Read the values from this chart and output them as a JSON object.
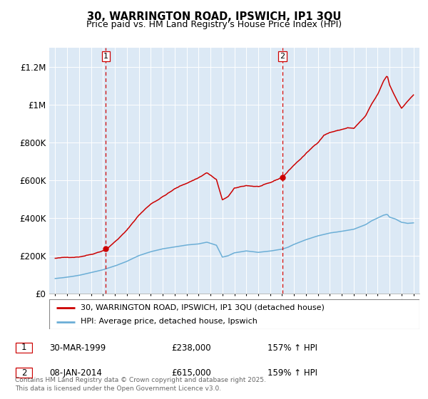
{
  "title1": "30, WARRINGTON ROAD, IPSWICH, IP1 3QU",
  "title2": "Price paid vs. HM Land Registry's House Price Index (HPI)",
  "ylim": [
    0,
    1300000
  ],
  "xlim_start": 1994.5,
  "xlim_end": 2025.5,
  "background_color": "#ffffff",
  "plot_bg_color": "#dce9f5",
  "grid_color": "#ffffff",
  "red_line_color": "#cc0000",
  "blue_line_color": "#6baed6",
  "sale1_x": 1999.24,
  "sale1_y": 238000,
  "sale2_x": 2014.03,
  "sale2_y": 615000,
  "vline_color": "#cc0000",
  "legend_label1": "30, WARRINGTON ROAD, IPSWICH, IP1 3QU (detached house)",
  "legend_label2": "HPI: Average price, detached house, Ipswich",
  "note1_date": "30-MAR-1999",
  "note1_price": "£238,000",
  "note1_hpi": "157% ↑ HPI",
  "note2_date": "08-JAN-2014",
  "note2_price": "£615,000",
  "note2_hpi": "159% ↑ HPI",
  "footer": "Contains HM Land Registry data © Crown copyright and database right 2025.\nThis data is licensed under the Open Government Licence v3.0.",
  "yticks": [
    0,
    200000,
    400000,
    600000,
    800000,
    1000000,
    1200000
  ],
  "ytick_labels": [
    "£0",
    "£200K",
    "£400K",
    "£600K",
    "£800K",
    "£1M",
    "£1.2M"
  ],
  "xticks": [
    1995,
    1996,
    1997,
    1998,
    1999,
    2000,
    2001,
    2002,
    2003,
    2004,
    2005,
    2006,
    2007,
    2008,
    2009,
    2010,
    2011,
    2012,
    2013,
    2014,
    2015,
    2016,
    2017,
    2018,
    2019,
    2020,
    2021,
    2022,
    2023,
    2024,
    2025
  ]
}
